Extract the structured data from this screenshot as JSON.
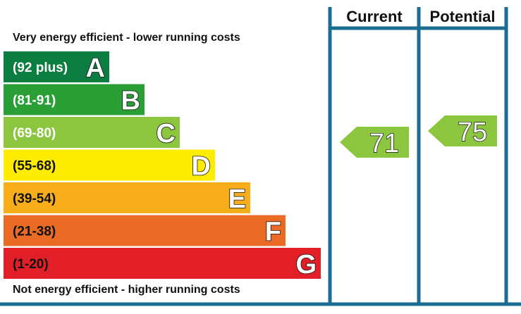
{
  "chart_data": {
    "type": "bar",
    "top_caption": "Very energy efficient - lower running costs",
    "bottom_caption": "Not energy efficient - higher running costs",
    "columns": {
      "current": "Current",
      "potential": "Potential"
    },
    "bands": [
      {
        "letter": "A",
        "range": "(92 plus)",
        "color": "#0c7d40",
        "text_color": "#ffffff"
      },
      {
        "letter": "B",
        "range": "(81-91)",
        "color": "#2a9f35",
        "text_color": "#ffffff"
      },
      {
        "letter": "C",
        "range": "(69-80)",
        "color": "#8cc63f",
        "text_color": "#ffffff"
      },
      {
        "letter": "D",
        "range": "(55-68)",
        "color": "#ffed00",
        "text_color": "#111111"
      },
      {
        "letter": "E",
        "range": "(39-54)",
        "color": "#f7ae1a",
        "text_color": "#111111"
      },
      {
        "letter": "F",
        "range": "(21-38)",
        "color": "#ea6b25",
        "text_color": "#111111"
      },
      {
        "letter": "G",
        "range": "(1-20)",
        "color": "#e21f26",
        "text_color": "#111111"
      }
    ],
    "current_rating": {
      "value": 71,
      "band": "C",
      "color": "#8cc63f"
    },
    "potential_rating": {
      "value": 75,
      "band": "C",
      "color": "#8cc63f"
    },
    "frame_color": "#1c6d93"
  }
}
